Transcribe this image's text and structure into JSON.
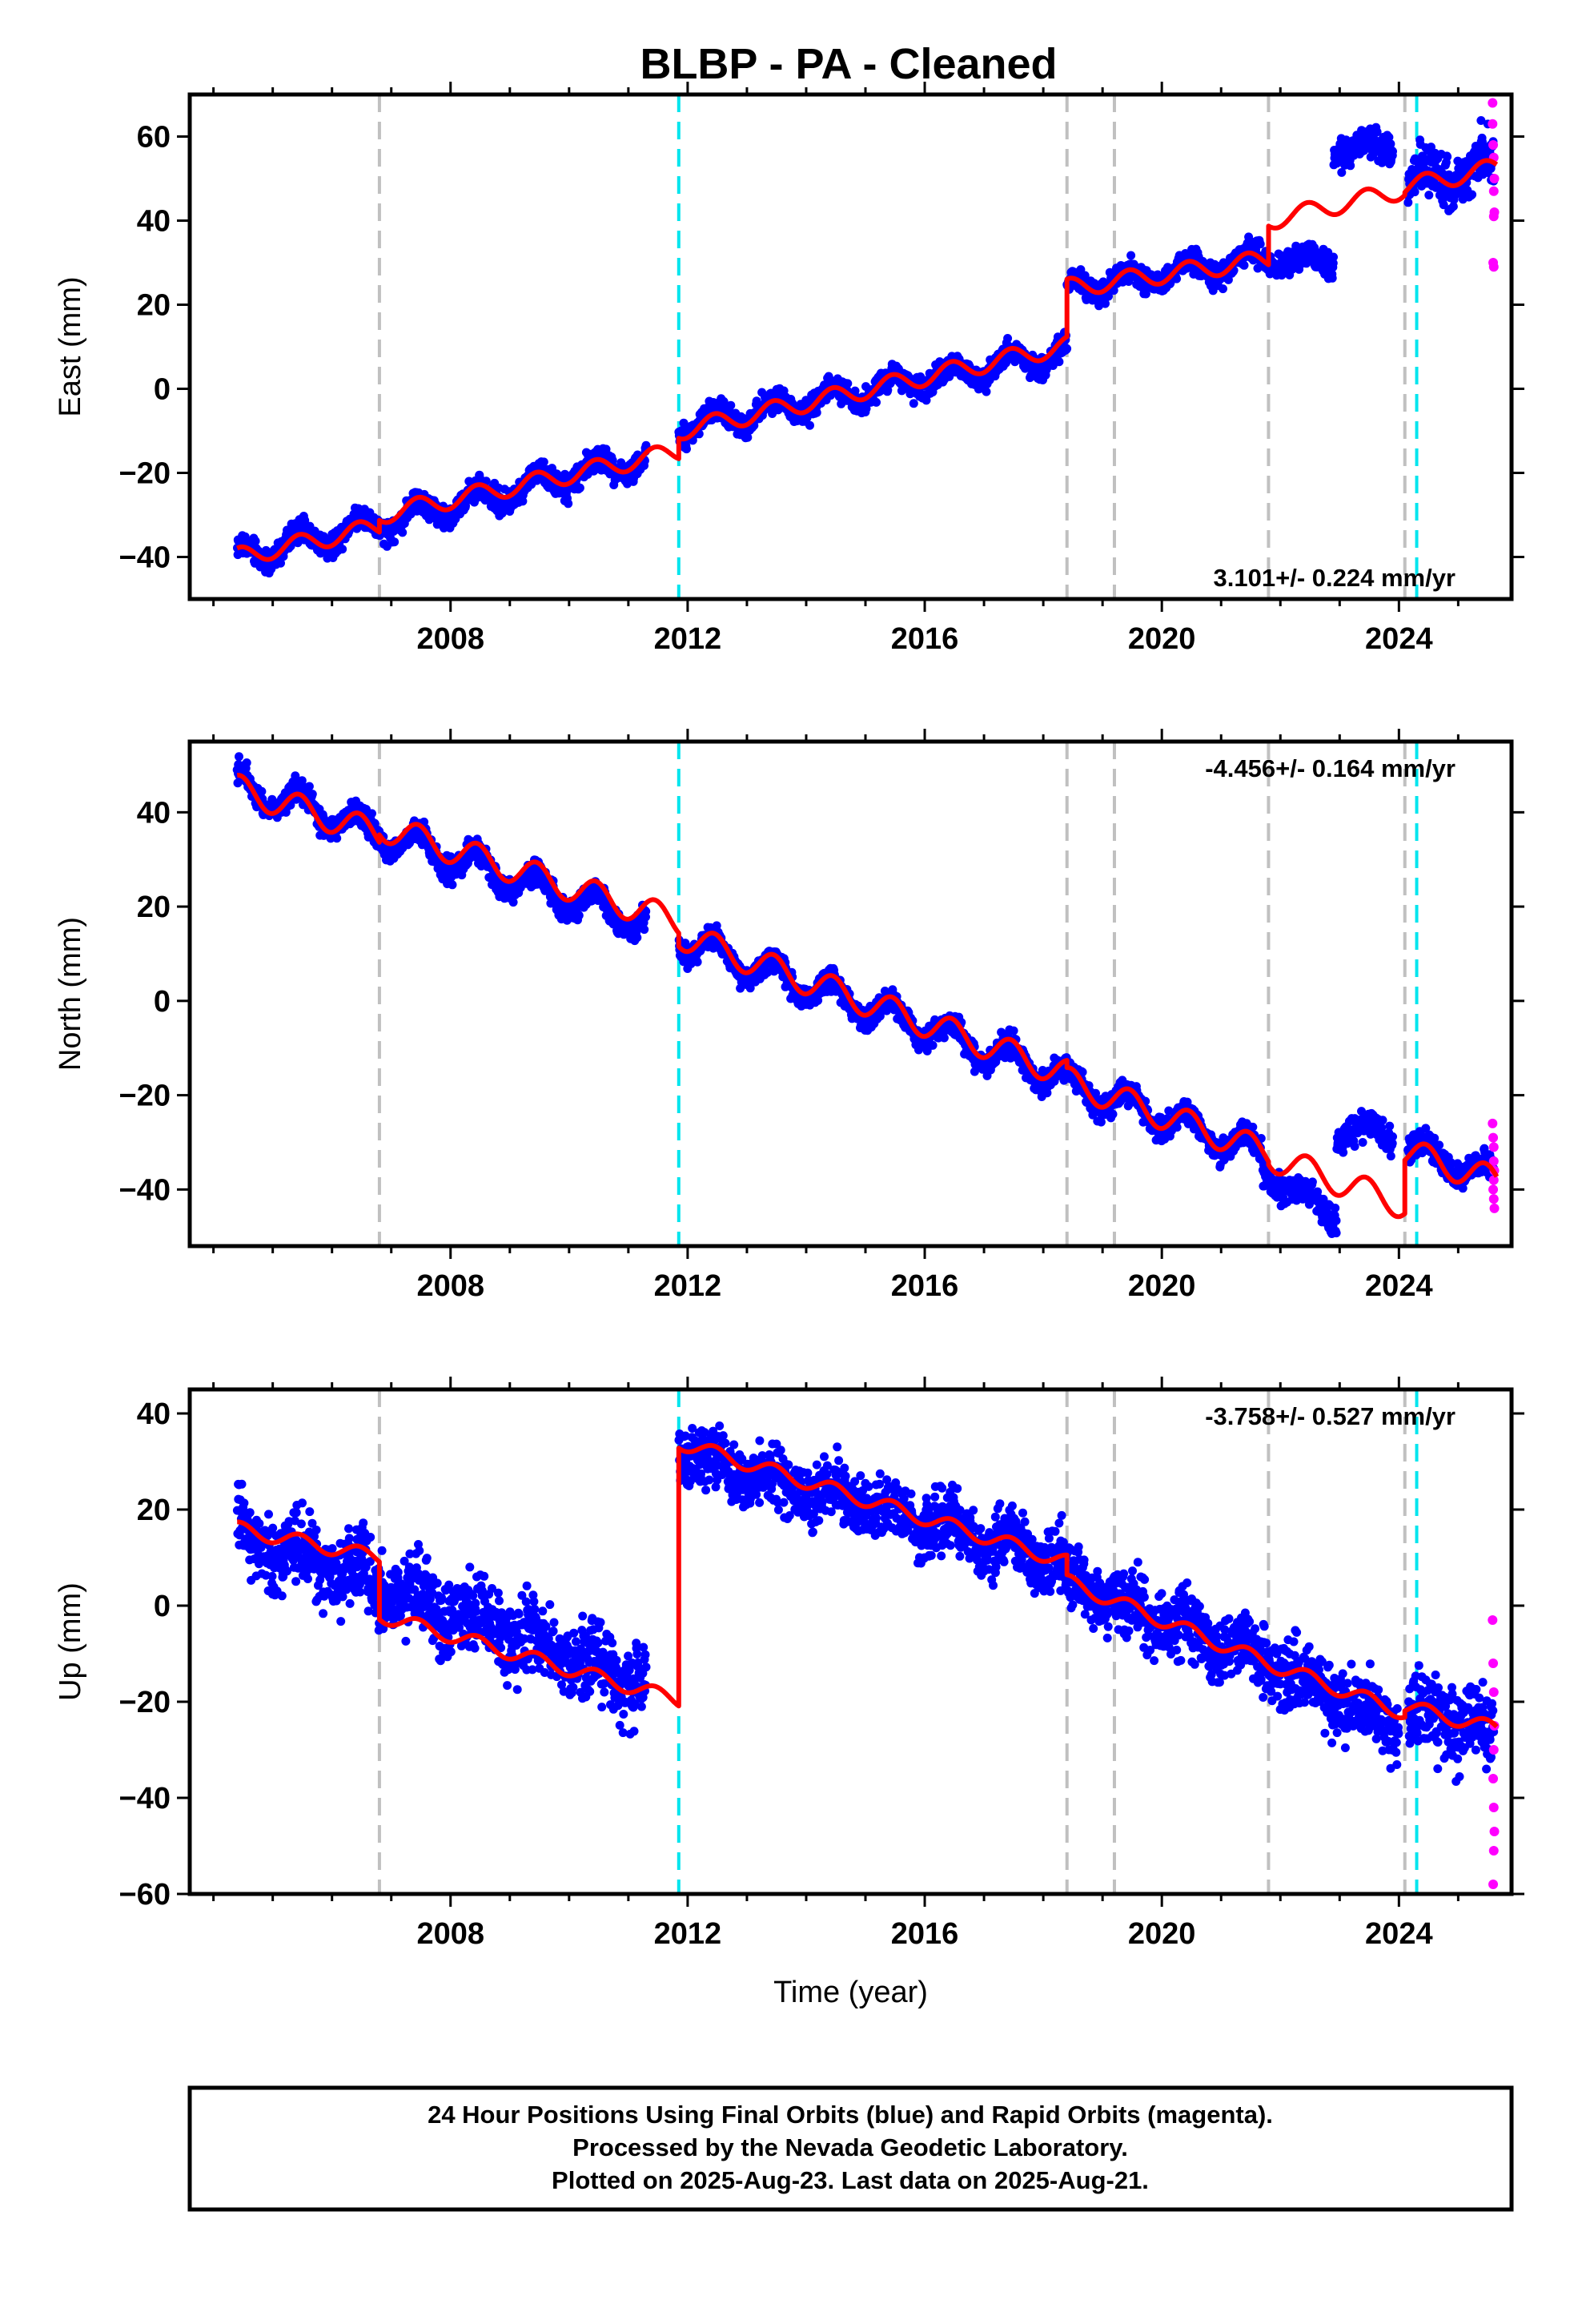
{
  "title": "BLBP  - PA - Cleaned",
  "info_box": {
    "lines": [
      "24 Hour Positions Using Final Orbits (blue) and Rapid Orbits (magenta).",
      "Processed by the Nevada Geodetic Laboratory.",
      "Plotted on 2025-Aug-23. Last data on 2025-Aug-21."
    ]
  },
  "colors": {
    "final_orbits": "#0000ff",
    "rapid_orbits": "#ff00ff",
    "model": "#ff0000",
    "equipment_change": "#c0c0c0",
    "earthquake": "#00e5ee"
  },
  "chart_data": [
    {
      "type": "scatter",
      "panel": "east",
      "ylabel": "East (mm)",
      "xlabel": "",
      "xlim": [
        2003.6,
        2025.9
      ],
      "ylim": [
        -50,
        70
      ],
      "x_ticks": [
        2008,
        2012,
        2016,
        2020,
        2024
      ],
      "y_ticks": [
        -40,
        -20,
        0,
        20,
        40,
        60
      ],
      "rate_text": "3.101+/- 0.224 mm/yr",
      "rate_position": "bottom-right",
      "grid": false,
      "equipment_changes": [
        2006.8,
        2018.4,
        2019.2,
        2021.8,
        2024.1
      ],
      "earthquakes": [
        2011.85,
        2024.3
      ],
      "model": {
        "amplitude": 2.2,
        "segments": [
          {
            "start": 2004.4,
            "end": 2006.8,
            "offset": -40.0,
            "slope": 3.0
          },
          {
            "start": 2006.8,
            "end": 2011.85,
            "offset": -30.0,
            "slope": 3.0
          },
          {
            "start": 2011.85,
            "end": 2018.4,
            "offset": -10.0,
            "slope": 3.1
          },
          {
            "start": 2018.4,
            "end": 2021.8,
            "offset": 24.0,
            "slope": 2.0
          },
          {
            "start": 2021.8,
            "end": 2024.1,
            "offset": 40.0,
            "slope": 3.2
          },
          {
            "start": 2024.1,
            "end": 2025.65,
            "offset": 48.0,
            "slope": 3.0
          }
        ]
      },
      "final_segments": [
        {
          "start": 2004.4,
          "end": 2011.3,
          "offset": -40.0,
          "slope": 3.4,
          "amp": 2.8,
          "noise": 2.0
        },
        {
          "start": 2011.85,
          "end": 2018.4,
          "offset": -9.0,
          "slope": 2.7,
          "amp": 2.5,
          "noise": 2.0
        },
        {
          "start": 2018.4,
          "end": 2021.7,
          "offset": 23.5,
          "slope": 2.3,
          "amp": 2.3,
          "noise": 2.0
        },
        {
          "start": 2021.7,
          "end": 2022.9,
          "offset": 31.0,
          "slope": -1.0,
          "amp": 1.5,
          "noise": 2.0
        },
        {
          "start": 2022.9,
          "end": 2023.9,
          "offset": 57.5,
          "slope": 0.0,
          "amp": 2.0,
          "noise": 2.5
        },
        {
          "start": 2024.15,
          "end": 2025.6,
          "offset": 50.0,
          "slope": 2.0,
          "amp": 3.0,
          "noise": 4.5
        }
      ],
      "rapid_points": [
        [
          2025.58,
          68
        ],
        [
          2025.58,
          63
        ],
        [
          2025.59,
          58
        ],
        [
          2025.6,
          55
        ],
        [
          2025.61,
          50
        ],
        [
          2025.6,
          47
        ],
        [
          2025.61,
          42
        ],
        [
          2025.6,
          41
        ],
        [
          2025.59,
          30
        ],
        [
          2025.6,
          29
        ]
      ]
    },
    {
      "type": "scatter",
      "panel": "north",
      "ylabel": "North (mm)",
      "xlabel": "",
      "xlim": [
        2003.6,
        2025.9
      ],
      "ylim": [
        -52,
        55
      ],
      "x_ticks": [
        2008,
        2012,
        2016,
        2020,
        2024
      ],
      "y_ticks": [
        -40,
        -20,
        0,
        20,
        40
      ],
      "rate_text": "-4.456+/- 0.164 mm/yr",
      "rate_position": "top-right",
      "grid": false,
      "equipment_changes": [
        2006.8,
        2018.4,
        2019.2,
        2021.8,
        2024.1
      ],
      "earthquakes": [
        2011.85,
        2024.3
      ],
      "model": {
        "amplitude": 3.0,
        "segments": [
          {
            "start": 2004.4,
            "end": 2006.8,
            "offset": 45.0,
            "slope": -4.0
          },
          {
            "start": 2006.8,
            "end": 2011.85,
            "offset": 37.0,
            "slope": -4.0
          },
          {
            "start": 2011.85,
            "end": 2018.4,
            "offset": 14.0,
            "slope": -4.5
          },
          {
            "start": 2018.4,
            "end": 2021.8,
            "offset": -17.0,
            "slope": -4.5
          },
          {
            "start": 2021.8,
            "end": 2024.1,
            "offset": -33.0,
            "slope": -4.5
          },
          {
            "start": 2024.1,
            "end": 2025.65,
            "offset": -32.0,
            "slope": -4.0
          }
        ]
      },
      "final_segments": [
        {
          "start": 2004.4,
          "end": 2011.3,
          "offset": 46.0,
          "slope": -4.3,
          "amp": 3.0,
          "noise": 1.8
        },
        {
          "start": 2011.85,
          "end": 2018.4,
          "offset": 13.0,
          "slope": -4.5,
          "amp": 3.0,
          "noise": 1.8
        },
        {
          "start": 2018.4,
          "end": 2021.7,
          "offset": -17.5,
          "slope": -4.5,
          "amp": 3.0,
          "noise": 1.8
        },
        {
          "start": 2021.7,
          "end": 2022.95,
          "offset": -36.0,
          "slope": -8.0,
          "amp": 2.0,
          "noise": 2.0
        },
        {
          "start": 2022.95,
          "end": 2023.9,
          "offset": -28.0,
          "slope": 0.0,
          "amp": 2.0,
          "noise": 2.0
        },
        {
          "start": 2024.15,
          "end": 2025.6,
          "offset": -31.0,
          "slope": -4.5,
          "amp": 2.5,
          "noise": 2.0
        }
      ],
      "rapid_points": [
        [
          2025.58,
          -26
        ],
        [
          2025.59,
          -29
        ],
        [
          2025.6,
          -31
        ],
        [
          2025.6,
          -34
        ],
        [
          2025.61,
          -36
        ],
        [
          2025.6,
          -38
        ],
        [
          2025.59,
          -40
        ],
        [
          2025.6,
          -42
        ],
        [
          2025.61,
          -44
        ]
      ]
    },
    {
      "type": "scatter",
      "panel": "up",
      "ylabel": "Up (mm)",
      "xlabel": "Time (year)",
      "xlim": [
        2003.6,
        2025.9
      ],
      "ylim": [
        -60,
        45
      ],
      "x_ticks": [
        2008,
        2012,
        2016,
        2020,
        2024
      ],
      "y_ticks": [
        -60,
        -40,
        -20,
        0,
        20,
        40
      ],
      "rate_text": "-3.758+/- 0.527 mm/yr",
      "rate_position": "top-right",
      "grid": false,
      "equipment_changes": [
        2006.8,
        2018.4,
        2019.2,
        2021.8,
        2024.1
      ],
      "earthquakes": [
        2011.85,
        2024.3
      ],
      "model": {
        "amplitude": 1.5,
        "segments": [
          {
            "start": 2004.4,
            "end": 2006.8,
            "offset": 16.0,
            "slope": -2.5
          },
          {
            "start": 2006.8,
            "end": 2011.85,
            "offset": -2.0,
            "slope": -3.5
          },
          {
            "start": 2011.85,
            "end": 2018.4,
            "offset": 34.0,
            "slope": -3.8
          },
          {
            "start": 2018.4,
            "end": 2021.8,
            "offset": 5.0,
            "slope": -5.0
          },
          {
            "start": 2021.8,
            "end": 2024.1,
            "offset": -12.0,
            "slope": -4.5
          },
          {
            "start": 2024.1,
            "end": 2025.65,
            "offset": -21.0,
            "slope": -3.0
          }
        ]
      },
      "final_segments": [
        {
          "start": 2004.4,
          "end": 2011.3,
          "offset": 15.0,
          "slope": -4.5,
          "amp": 2.5,
          "noise": 5.5
        },
        {
          "start": 2011.85,
          "end": 2018.4,
          "offset": 32.0,
          "slope": -3.5,
          "amp": 2.0,
          "noise": 4.5
        },
        {
          "start": 2018.4,
          "end": 2021.8,
          "offset": 5.0,
          "slope": -5.0,
          "amp": 2.0,
          "noise": 4.5
        },
        {
          "start": 2021.8,
          "end": 2024.0,
          "offset": -12.0,
          "slope": -6.0,
          "amp": 2.0,
          "noise": 5.0
        },
        {
          "start": 2024.15,
          "end": 2025.6,
          "offset": -22.0,
          "slope": -3.0,
          "amp": 2.0,
          "noise": 6.0
        }
      ],
      "rapid_points": [
        [
          2025.58,
          -3
        ],
        [
          2025.59,
          -12
        ],
        [
          2025.6,
          -18
        ],
        [
          2025.61,
          -25
        ],
        [
          2025.6,
          -30
        ],
        [
          2025.59,
          -36
        ],
        [
          2025.6,
          -42
        ],
        [
          2025.61,
          -47
        ],
        [
          2025.6,
          -51
        ],
        [
          2025.59,
          -58
        ]
      ]
    }
  ]
}
